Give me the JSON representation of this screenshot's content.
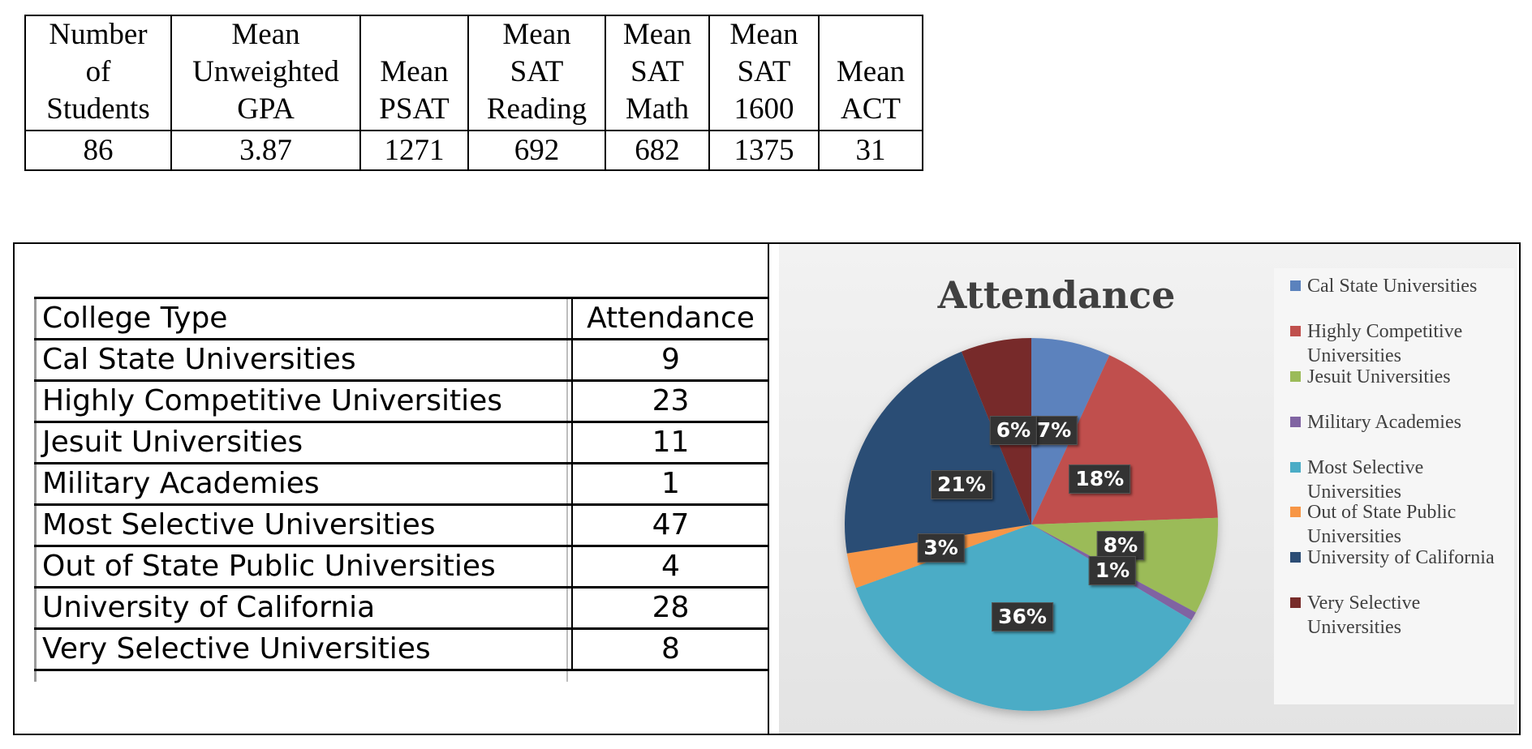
{
  "stats": {
    "headers": [
      [
        "Number",
        "of",
        "Students"
      ],
      [
        "Mean",
        "Unweighted",
        "GPA"
      ],
      [
        "Mean",
        "PSAT"
      ],
      [
        "Mean",
        "SAT",
        "Reading"
      ],
      [
        "Mean",
        "SAT",
        "Math"
      ],
      [
        "Mean",
        "SAT",
        "1600"
      ],
      [
        "Mean",
        "ACT"
      ]
    ],
    "values": [
      "86",
      "3.87",
      "1271",
      "692",
      "682",
      "1375",
      "31"
    ]
  },
  "attendance_table": {
    "header": [
      "College Type",
      "Attendance"
    ],
    "rows": [
      [
        "Cal State Universities",
        "9"
      ],
      [
        "Highly Competitive Universities",
        "23"
      ],
      [
        "Jesuit Universities",
        "11"
      ],
      [
        "Military Academies",
        "1"
      ],
      [
        "Most Selective Universities",
        "47"
      ],
      [
        "Out of State Public Universities",
        "4"
      ],
      [
        "University of California",
        "28"
      ],
      [
        "Very Selective Universities",
        "8"
      ]
    ]
  },
  "chart_data": {
    "type": "pie",
    "title": "Attendance",
    "legend_position": "right",
    "categories": [
      "Cal State Universities",
      "Highly Competitive Universities",
      "Jesuit Universities",
      "Military Academies",
      "Most Selective Universities",
      "Out of State Public Universities",
      "University of California",
      "Very Selective Universities"
    ],
    "legend_labels": [
      [
        "Cal State Universities"
      ],
      [
        "Highly Competitive",
        "Universities"
      ],
      [
        "Jesuit Universities"
      ],
      [
        "Military Academies"
      ],
      [
        "Most Selective",
        "Universities"
      ],
      [
        "Out of State Public",
        "Universities"
      ],
      [
        "University of California"
      ],
      [
        "Very Selective",
        "Universities"
      ]
    ],
    "values": [
      9,
      23,
      11,
      1,
      47,
      4,
      28,
      8
    ],
    "data_labels": [
      "7%",
      "18%",
      "8%",
      "1%",
      "36%",
      "3%",
      "21%",
      "6%"
    ],
    "colors": [
      "#5b82bd",
      "#c0504d",
      "#9bbb59",
      "#8064a2",
      "#4bacc6",
      "#f79646",
      "#2c4d75",
      "#772c2a"
    ]
  }
}
